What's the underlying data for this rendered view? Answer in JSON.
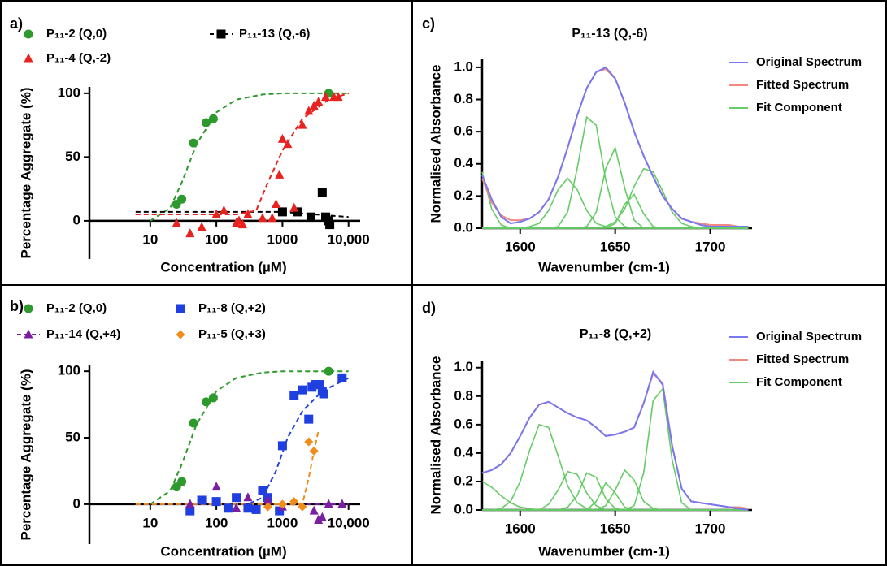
{
  "chart_data": [
    {
      "type": "scatter",
      "panel_label": "a)",
      "xscale": "log",
      "xlabel": "Concentration (µM)",
      "ylabel": "Percentage Aggregate (%)",
      "xlim": [
        1.2,
        15000
      ],
      "xticks": [
        10,
        100,
        1000,
        {
          "value": 10000,
          "label": "10,000"
        }
      ],
      "ylim": [
        -30,
        105
      ],
      "yticks": [
        0,
        50,
        100
      ],
      "series": [
        {
          "name": "P₁₁-2 (Q,0)",
          "color": "#2e9a2e",
          "marker": "circle",
          "x": [
            25,
            30,
            45,
            70,
            90,
            5000
          ],
          "values": [
            13,
            17,
            61,
            77,
            80,
            100
          ],
          "fit": {
            "x": [
              10,
              20,
              30,
              50,
              100,
              200,
              500,
              1000,
              10000
            ],
            "values": [
              0,
              10,
              30,
              60,
              85,
              95,
              99,
              100,
              100
            ]
          }
        },
        {
          "name": "P₁₁-13 (Q,-6)",
          "color": "#000000",
          "marker": "square",
          "legend_dashed": true,
          "x": [
            1000,
            1700,
            2700,
            4000,
            4500,
            5000,
            5200
          ],
          "values": [
            7,
            7,
            3,
            22,
            3,
            0,
            -3
          ],
          "fit": {
            "x": [
              6,
              1000,
              10000
            ],
            "values": [
              7,
              7,
              3
            ]
          }
        },
        {
          "name": "P₁₁-4 (Q,-2)",
          "color": "#e8231f",
          "marker": "triangle",
          "x": [
            25,
            40,
            60,
            100,
            130,
            200,
            220,
            250,
            300,
            500,
            700,
            800,
            900,
            1000,
            1200,
            1500,
            2000,
            2500,
            3000,
            3500,
            4500,
            6000,
            7000
          ],
          "values": [
            -2,
            -10,
            -5,
            5,
            8,
            -2,
            0,
            -3,
            5,
            2,
            2,
            13,
            36,
            64,
            60,
            10,
            75,
            86,
            90,
            93,
            97,
            97,
            97
          ],
          "fit": {
            "x": [
              6,
              200,
              400,
              600,
              1000,
              2000,
              5000,
              10000
            ],
            "values": [
              5,
              5,
              8,
              30,
              55,
              80,
              95,
              100
            ]
          }
        }
      ]
    },
    {
      "type": "scatter",
      "panel_label": "b)",
      "xscale": "log",
      "xlabel": "Concentration (µM)",
      "ylabel": "Percentage Aggregate (%)",
      "xlim": [
        1.2,
        15000
      ],
      "xticks": [
        10,
        100,
        1000,
        {
          "value": 10000,
          "label": "10,000"
        }
      ],
      "ylim": [
        -30,
        105
      ],
      "yticks": [
        0,
        50,
        100
      ],
      "series": [
        {
          "name": "P₁₁-2 (Q,0)",
          "color": "#2e9a2e",
          "marker": "circle",
          "x": [
            25,
            30,
            45,
            70,
            90,
            5000
          ],
          "values": [
            13,
            17,
            61,
            77,
            80,
            100
          ],
          "fit": {
            "x": [
              10,
              20,
              30,
              50,
              100,
              200,
              500,
              1000,
              10000
            ],
            "values": [
              0,
              10,
              30,
              60,
              85,
              95,
              99,
              100,
              100
            ]
          }
        },
        {
          "name": "P₁₁-8 (Q,+2)",
          "color": "#1f3fe0",
          "marker": "square",
          "x": [
            40,
            60,
            100,
            150,
            200,
            300,
            400,
            500,
            600,
            900,
            1000,
            1500,
            2000,
            2500,
            2800,
            3200,
            3600,
            4000,
            4200,
            8000
          ],
          "values": [
            -5,
            3,
            2,
            -3,
            5,
            -3,
            -4,
            10,
            5,
            -5,
            44,
            82,
            86,
            64,
            88,
            90,
            90,
            85,
            83,
            95
          ],
          "fit": {
            "x": [
              6,
              300,
              500,
              800,
              1200,
              2000,
              4000,
              10000
            ],
            "values": [
              0,
              0,
              5,
              25,
              50,
              70,
              85,
              95
            ]
          }
        },
        {
          "name": "P₁₁-14 (Q,+4)",
          "color": "#7b1fa2",
          "marker": "triangle",
          "legend_dashed": true,
          "x": [
            40,
            100,
            200,
            300,
            600,
            1000,
            3000,
            3500,
            4000,
            5000,
            8000
          ],
          "values": [
            0,
            13,
            -3,
            5,
            3,
            -2,
            -5,
            -12,
            -10,
            0,
            0
          ],
          "fit": {
            "x": [
              6,
              10000
            ],
            "values": [
              0,
              0
            ]
          }
        },
        {
          "name": "P₁₁-5 (Q,+3)",
          "color": "#f08c1a",
          "marker": "diamond",
          "x": [
            600,
            1000,
            1500,
            2000,
            2500,
            3000
          ],
          "values": [
            -2,
            0,
            2,
            -2,
            47,
            40
          ],
          "fit": {
            "x": [
              6,
              2000,
              2500,
              3000,
              3500
            ],
            "values": [
              0,
              0,
              20,
              40,
              55
            ]
          }
        }
      ]
    },
    {
      "type": "line",
      "panel_label": "c)",
      "title": "P₁₁-13 (Q,-6)",
      "xlabel": "Wavenumber (cm-1)",
      "ylabel": "Normalised Absorbance",
      "xlim": [
        1580,
        1722
      ],
      "xticks": [
        1600,
        1650,
        1700
      ],
      "ylim": [
        0,
        1.05
      ],
      "yticks": [
        {
          "value": 0,
          "label": "0.0"
        },
        {
          "value": 0.2,
          "label": "0.2"
        },
        {
          "value": 0.4,
          "label": "0.4"
        },
        {
          "value": 0.6,
          "label": "0.6"
        },
        {
          "value": 0.8,
          "label": "0.8"
        },
        {
          "value": 1,
          "label": "1.0"
        }
      ],
      "x": [
        1580,
        1585,
        1590,
        1595,
        1600,
        1605,
        1610,
        1615,
        1620,
        1625,
        1630,
        1635,
        1640,
        1645,
        1650,
        1655,
        1660,
        1665,
        1670,
        1675,
        1680,
        1685,
        1690,
        1695,
        1700,
        1705,
        1710,
        1715,
        1720
      ],
      "series": [
        {
          "name": "Original Spectrum",
          "color": "#7878f0",
          "values": [
            0.33,
            0.18,
            0.07,
            0.03,
            0.04,
            0.06,
            0.1,
            0.18,
            0.32,
            0.5,
            0.7,
            0.87,
            0.97,
            1.0,
            0.93,
            0.78,
            0.6,
            0.45,
            0.32,
            0.2,
            0.12,
            0.06,
            0.04,
            0.02,
            0.01,
            0.01,
            0.01,
            0.01,
            0.01
          ]
        },
        {
          "name": "Fitted Spectrum",
          "color": "#f08a80",
          "values": [
            0.31,
            0.16,
            0.08,
            0.05,
            0.05,
            0.06,
            0.1,
            0.18,
            0.32,
            0.5,
            0.7,
            0.87,
            0.97,
            0.99,
            0.93,
            0.78,
            0.6,
            0.45,
            0.32,
            0.2,
            0.12,
            0.06,
            0.04,
            0.03,
            0.02,
            0.02,
            0.02,
            0.01,
            0.01
          ]
        },
        {
          "name": "Fit Component",
          "color": "#66cc66",
          "components": [
            [
              0.35,
              0.12,
              0.02,
              0,
              0,
              0,
              0,
              0,
              0,
              0,
              0,
              0,
              0,
              0,
              0,
              0,
              0,
              0,
              0,
              0,
              0,
              0,
              0,
              0,
              0,
              0,
              0,
              0,
              0
            ],
            [
              0,
              0,
              0,
              0,
              0,
              0.01,
              0.03,
              0.11,
              0.24,
              0.31,
              0.24,
              0.11,
              0.03,
              0.01,
              0,
              0,
              0,
              0,
              0,
              0,
              0,
              0,
              0,
              0,
              0,
              0,
              0,
              0,
              0
            ],
            [
              0,
              0,
              0,
              0,
              0,
              0,
              0,
              0,
              0.01,
              0.1,
              0.37,
              0.69,
              0.64,
              0.3,
              0.07,
              0.01,
              0,
              0,
              0,
              0,
              0,
              0,
              0,
              0,
              0,
              0,
              0,
              0,
              0
            ],
            [
              0,
              0,
              0,
              0,
              0,
              0,
              0,
              0,
              0,
              0,
              0,
              0.01,
              0.1,
              0.37,
              0.5,
              0.25,
              0.05,
              0,
              0,
              0,
              0,
              0,
              0,
              0,
              0,
              0,
              0,
              0,
              0
            ],
            [
              0,
              0,
              0,
              0,
              0,
              0,
              0,
              0,
              0,
              0,
              0,
              0,
              0,
              0,
              0.03,
              0.15,
              0.21,
              0.09,
              0.01,
              0,
              0,
              0,
              0,
              0,
              0,
              0,
              0,
              0,
              0
            ],
            [
              0,
              0,
              0,
              0,
              0,
              0,
              0,
              0,
              0,
              0,
              0,
              0,
              0,
              0.01,
              0.04,
              0.12,
              0.26,
              0.37,
              0.35,
              0.23,
              0.1,
              0.03,
              0.01,
              0,
              0,
              0,
              0,
              0,
              0
            ]
          ]
        }
      ]
    },
    {
      "type": "line",
      "panel_label": "d)",
      "title": "P₁₁-8 (Q,+2)",
      "xlabel": "Wavenumber (cm-1)",
      "ylabel": "Normalised Absorbance",
      "xlim": [
        1580,
        1722
      ],
      "xticks": [
        1600,
        1650,
        1700
      ],
      "ylim": [
        0,
        1.05
      ],
      "yticks": [
        {
          "value": 0,
          "label": "0.0"
        },
        {
          "value": 0.2,
          "label": "0.2"
        },
        {
          "value": 0.4,
          "label": "0.4"
        },
        {
          "value": 0.6,
          "label": "0.6"
        },
        {
          "value": 0.8,
          "label": "0.8"
        },
        {
          "value": 1,
          "label": "1.0"
        }
      ],
      "x": [
        1580,
        1585,
        1590,
        1595,
        1600,
        1605,
        1610,
        1615,
        1620,
        1625,
        1630,
        1635,
        1640,
        1645,
        1650,
        1655,
        1660,
        1665,
        1670,
        1675,
        1680,
        1685,
        1690,
        1695,
        1700,
        1705,
        1710,
        1715,
        1720
      ],
      "series": [
        {
          "name": "Original Spectrum",
          "color": "#7878f0",
          "values": [
            0.26,
            0.28,
            0.32,
            0.4,
            0.52,
            0.65,
            0.74,
            0.76,
            0.72,
            0.68,
            0.65,
            0.63,
            0.58,
            0.52,
            0.53,
            0.55,
            0.58,
            0.75,
            0.97,
            0.88,
            0.45,
            0.15,
            0.06,
            0.05,
            0.04,
            0.03,
            0.02,
            0.01,
            0
          ]
        },
        {
          "name": "Fitted Spectrum",
          "color": "#f08a80",
          "values": [
            0.26,
            0.28,
            0.32,
            0.4,
            0.52,
            0.65,
            0.74,
            0.76,
            0.72,
            0.68,
            0.65,
            0.63,
            0.58,
            0.52,
            0.53,
            0.55,
            0.58,
            0.75,
            0.96,
            0.89,
            0.45,
            0.15,
            0.06,
            0.05,
            0.04,
            0.03,
            0.02,
            0.02,
            0.01
          ]
        },
        {
          "name": "Fit Component",
          "color": "#66cc66",
          "components": [
            [
              0.2,
              0.16,
              0.1,
              0.05,
              0.02,
              0.01,
              0,
              0,
              0,
              0,
              0,
              0,
              0,
              0,
              0,
              0,
              0,
              0,
              0,
              0,
              0,
              0,
              0,
              0,
              0,
              0,
              0,
              0,
              0
            ],
            [
              0,
              0,
              0.01,
              0.06,
              0.2,
              0.42,
              0.6,
              0.58,
              0.38,
              0.17,
              0.05,
              0.01,
              0,
              0,
              0,
              0,
              0,
              0,
              0,
              0,
              0,
              0,
              0,
              0,
              0,
              0,
              0,
              0,
              0
            ],
            [
              0,
              0,
              0,
              0,
              0,
              0,
              0,
              0.04,
              0.14,
              0.27,
              0.25,
              0.12,
              0.03,
              0,
              0,
              0,
              0,
              0,
              0,
              0,
              0,
              0,
              0,
              0,
              0,
              0,
              0,
              0,
              0
            ],
            [
              0,
              0,
              0,
              0,
              0,
              0,
              0,
              0,
              0,
              0.02,
              0.1,
              0.26,
              0.23,
              0.08,
              0.01,
              0,
              0,
              0,
              0,
              0,
              0,
              0,
              0,
              0,
              0,
              0,
              0,
              0,
              0
            ],
            [
              0,
              0,
              0,
              0,
              0,
              0,
              0,
              0,
              0,
              0,
              0,
              0,
              0.06,
              0.19,
              0.12,
              0.02,
              0,
              0,
              0,
              0,
              0,
              0,
              0,
              0,
              0,
              0,
              0,
              0,
              0
            ],
            [
              0,
              0,
              0,
              0,
              0,
              0,
              0,
              0,
              0,
              0,
              0,
              0,
              0,
              0.03,
              0.14,
              0.28,
              0.21,
              0.06,
              0.01,
              0,
              0,
              0,
              0,
              0,
              0,
              0,
              0,
              0,
              0
            ],
            [
              0,
              0,
              0,
              0,
              0,
              0,
              0,
              0,
              0,
              0,
              0,
              0,
              0,
              0,
              0,
              0,
              0.03,
              0.26,
              0.77,
              0.85,
              0.35,
              0.05,
              0,
              0,
              0,
              0,
              0,
              0,
              0
            ]
          ]
        }
      ]
    }
  ]
}
